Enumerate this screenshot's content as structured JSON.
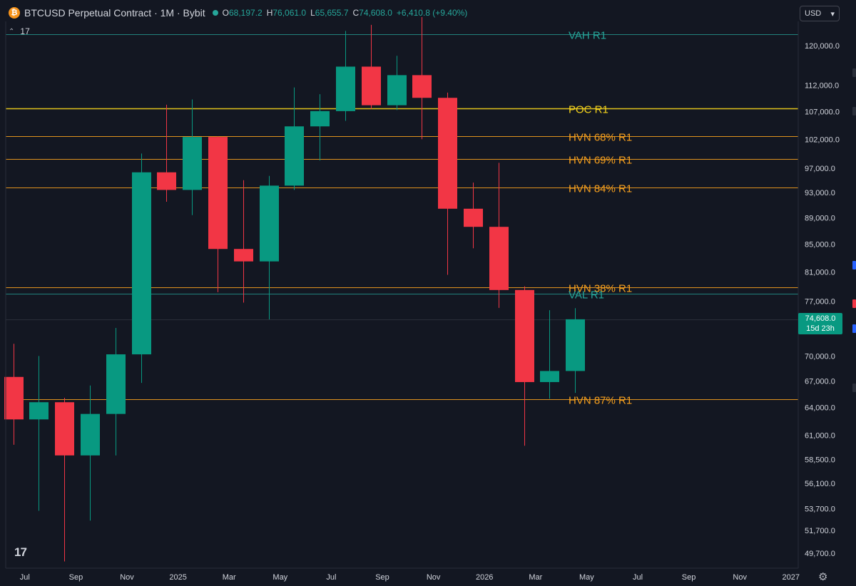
{
  "header": {
    "brand_glyph": "₿",
    "title": "BTCUSD Perpetual Contract · 1M · Bybit",
    "ohlc": [
      {
        "k": "O",
        "v": "68,197.2"
      },
      {
        "k": "H",
        "v": "76,061.0"
      },
      {
        "k": "L",
        "v": "65,655.7"
      },
      {
        "k": "C",
        "v": "74,608.0"
      },
      {
        "k": "",
        "v": "+6,410.8 (+9.40%)"
      }
    ]
  },
  "indicator_toggle": {
    "chevron": "⌃",
    "count": "17"
  },
  "currency": {
    "label": "USD",
    "chevron": "▾"
  },
  "price_badge": {
    "price": "74,608.0",
    "countdown": "15d 23h"
  },
  "logo_text": "17",
  "gear_glyph": "⚙",
  "colors": {
    "background": "#131722",
    "up": "#089981",
    "down": "#f23645",
    "hvn": "#f7a01e",
    "poc": "#f5d31c",
    "va": "#26a69a",
    "text": "#d1d4dc"
  },
  "chart_data": {
    "type": "candlestick",
    "y_ticks": [
      120000,
      112000,
      107000,
      102000,
      97000,
      93000,
      89000,
      85000,
      81000,
      77000,
      70000,
      67000,
      64000,
      61000,
      58500,
      56100,
      53700,
      51700,
      49700
    ],
    "y_tick_labels": [
      "120,000.0",
      "112,000.0",
      "107,000.0",
      "102,000.0",
      "97,000.0",
      "93,000.0",
      "89,000.0",
      "85,000.0",
      "81,000.0",
      "77,000.0",
      "70,000.0",
      "67,000.0",
      "64,000.0",
      "61,000.0",
      "58,500.0",
      "56,100.0",
      "53,700.0",
      "51,700.0",
      "49,700.0"
    ],
    "x_ticks": [
      {
        "label": "Jul",
        "month": "2024-07"
      },
      {
        "label": "Sep",
        "month": "2024-09"
      },
      {
        "label": "Nov",
        "month": "2024-11"
      },
      {
        "label": "2025",
        "month": "2025-01"
      },
      {
        "label": "Mar",
        "month": "2025-03"
      },
      {
        "label": "May",
        "month": "2025-05"
      },
      {
        "label": "Jul",
        "month": "2025-07"
      },
      {
        "label": "Sep",
        "month": "2025-09"
      },
      {
        "label": "Nov",
        "month": "2025-11"
      },
      {
        "label": "2026",
        "month": "2026-01"
      },
      {
        "label": "Mar",
        "month": "2026-03"
      },
      {
        "label": "May",
        "month": "2026-05"
      },
      {
        "label": "Jul",
        "month": "2026-07"
      },
      {
        "label": "Sep",
        "month": "2026-09"
      },
      {
        "label": "Nov",
        "month": "2026-11"
      },
      {
        "label": "2027",
        "month": "2027-01"
      }
    ],
    "candles": [
      {
        "month": "2024-06",
        "o": 67500,
        "h": 71500,
        "l": 60000,
        "c": 62700
      },
      {
        "month": "2024-07",
        "o": 62700,
        "h": 70000,
        "l": 53500,
        "c": 64600
      },
      {
        "month": "2024-08",
        "o": 64600,
        "h": 65100,
        "l": 49000,
        "c": 58900
      },
      {
        "month": "2024-09",
        "o": 58900,
        "h": 66500,
        "l": 52600,
        "c": 63300
      },
      {
        "month": "2024-10",
        "o": 63300,
        "h": 73500,
        "l": 58900,
        "c": 70200
      },
      {
        "month": "2024-11",
        "o": 70200,
        "h": 99500,
        "l": 66800,
        "c": 96300
      },
      {
        "month": "2024-12",
        "o": 96300,
        "h": 108300,
        "l": 91500,
        "c": 93400
      },
      {
        "month": "2025-01",
        "o": 93400,
        "h": 109300,
        "l": 89400,
        "c": 102400
      },
      {
        "month": "2025-02",
        "o": 102400,
        "h": 102500,
        "l": 78200,
        "c": 84300
      },
      {
        "month": "2025-03",
        "o": 84300,
        "h": 95000,
        "l": 76800,
        "c": 82500
      },
      {
        "month": "2025-04",
        "o": 82500,
        "h": 95700,
        "l": 74600,
        "c": 94100
      },
      {
        "month": "2025-05",
        "o": 94100,
        "h": 111600,
        "l": 93400,
        "c": 104300
      },
      {
        "month": "2025-06",
        "o": 104300,
        "h": 110300,
        "l": 98300,
        "c": 107100
      },
      {
        "month": "2025-07",
        "o": 107100,
        "h": 123100,
        "l": 105300,
        "c": 115700
      },
      {
        "month": "2025-08",
        "o": 115700,
        "h": 124400,
        "l": 107500,
        "c": 108200
      },
      {
        "month": "2025-09",
        "o": 108200,
        "h": 117900,
        "l": 107300,
        "c": 114000
      },
      {
        "month": "2025-10",
        "o": 114000,
        "h": 126100,
        "l": 102000,
        "c": 109600
      },
      {
        "month": "2025-11",
        "o": 109600,
        "h": 110600,
        "l": 80600,
        "c": 90400
      },
      {
        "month": "2025-12",
        "o": 90400,
        "h": 94600,
        "l": 84400,
        "c": 87600
      },
      {
        "month": "2026-01",
        "o": 87600,
        "h": 97900,
        "l": 76100,
        "c": 78500
      },
      {
        "month": "2026-02",
        "o": 78500,
        "h": 79000,
        "l": 59900,
        "c": 66900
      },
      {
        "month": "2026-03",
        "o": 66900,
        "h": 75800,
        "l": 65000,
        "c": 68200
      },
      {
        "month": "2026-04",
        "o": 68200,
        "h": 76061,
        "l": 65655.7,
        "c": 74608
      }
    ],
    "levels": [
      {
        "label": "VAH R1",
        "price": 122400,
        "kind": "va"
      },
      {
        "label": "POC R1",
        "price": 107600,
        "kind": "poc"
      },
      {
        "label": "HVN 68% R1",
        "price": 102500,
        "kind": "hvn"
      },
      {
        "label": "HVN 69% R1",
        "price": 98600,
        "kind": "hvn"
      },
      {
        "label": "HVN 84% R1",
        "price": 93800,
        "kind": "hvn"
      },
      {
        "label": "HVN 38% R1",
        "price": 78900,
        "kind": "hvn"
      },
      {
        "label": "VAL R1",
        "price": 78000,
        "kind": "va"
      },
      {
        "label": "HVN 87% R1",
        "price": 64900,
        "kind": "hvn"
      }
    ],
    "last_price": 74608,
    "axis_side": "right",
    "grid": false
  }
}
